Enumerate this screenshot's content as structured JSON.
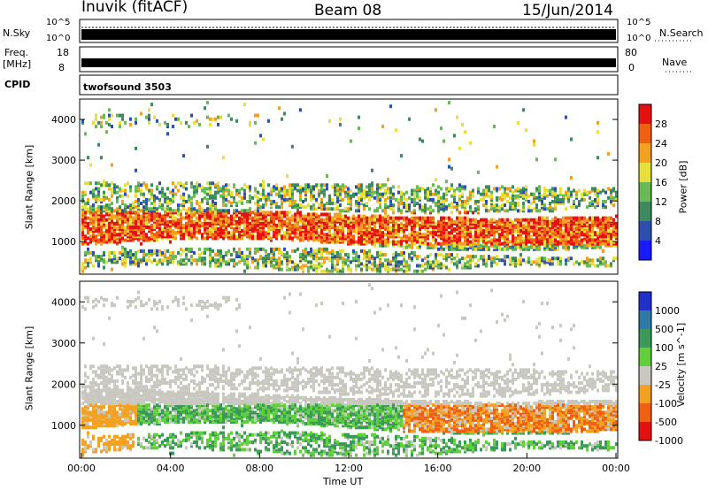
{
  "header": {
    "station": "Inuvik (fitACF)",
    "beam": "Beam 08",
    "date": "15/Jun/2014"
  },
  "noise_panel": {
    "left_label": "N.Sky",
    "right_label": "N.Search",
    "left_ticks": [
      "10^5",
      "10^0"
    ],
    "right_ticks": [
      "10^5",
      "10^0"
    ]
  },
  "freq_panel": {
    "left_label_1": "Freq.",
    "left_label_2": "[MHz]",
    "left_ticks": [
      "18",
      "8"
    ],
    "right_label": "Nave",
    "right_ticks": [
      "80",
      "0"
    ]
  },
  "cpid_panel": {
    "label": "CPID",
    "value": "twofsound 3503"
  },
  "chart_data": [
    {
      "type": "heatmap",
      "name": "power",
      "ylabel": "Slant Range [km]",
      "colorbar_label": "Power [dB]",
      "ylim": [
        200,
        4500
      ],
      "yticks": [
        "1000",
        "2000",
        "3000",
        "4000"
      ],
      "colorbar_ticks": [
        "4",
        "8",
        "12",
        "16",
        "20",
        "24",
        "28"
      ],
      "colorbar_colors": [
        "#1a1aff",
        "#2e4fb0",
        "#3d8a5e",
        "#66bb55",
        "#e8e03a",
        "#f4a020",
        "#f06010",
        "#e51010"
      ],
      "description_bands_km": [
        [
          300,
          800
        ],
        [
          900,
          1800
        ],
        [
          1800,
          2500
        ],
        [
          3800,
          4100
        ]
      ]
    },
    {
      "type": "heatmap",
      "name": "velocity",
      "ylabel": "Slant Range [km]",
      "colorbar_label": "Velocity [m s^-1]",
      "ylim": [
        200,
        4500
      ],
      "yticks": [
        "1000",
        "2000",
        "3000",
        "4000"
      ],
      "colorbar_ticks": [
        "1000",
        "500",
        "100",
        "25",
        "-25",
        "-100",
        "-500",
        "-1000"
      ],
      "colorbar_colors": [
        "#2030c8",
        "#2e7aa8",
        "#3a9a5a",
        "#5fcf3a",
        "#c8c8c0",
        "#f4a020",
        "#f06010",
        "#e51010"
      ]
    }
  ],
  "time_axis": {
    "xlabel": "Time UT",
    "ticks": [
      "00:00",
      "04:00",
      "08:00",
      "12:00",
      "16:00",
      "20:00",
      "00:00"
    ]
  }
}
